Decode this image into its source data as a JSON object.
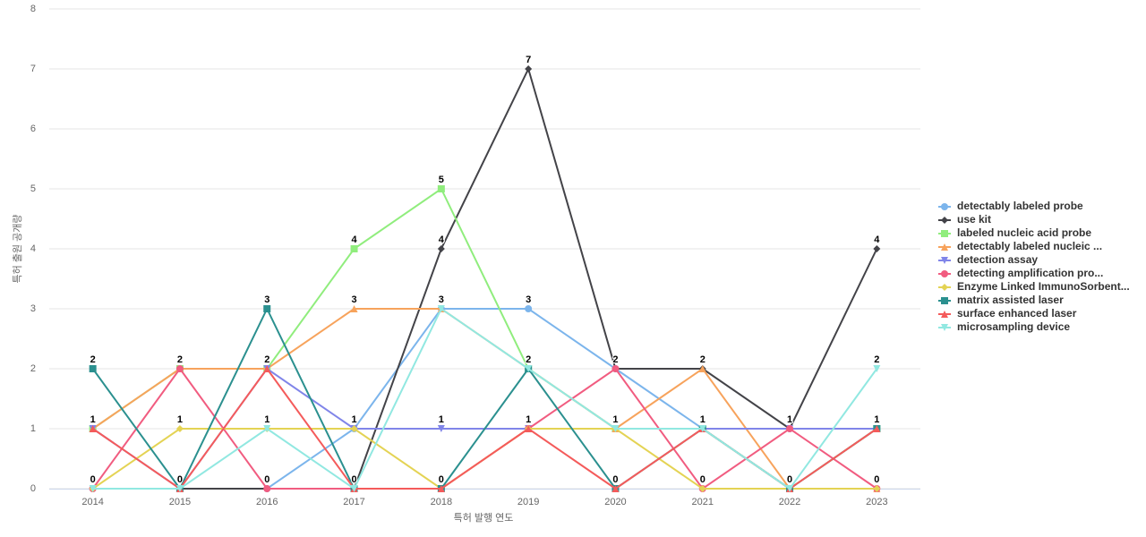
{
  "chart_data": {
    "type": "line",
    "x_label": "특허 발행 연도",
    "y_label": "특허 출원 공개량",
    "categories": [
      "2014",
      "2015",
      "2016",
      "2017",
      "2018",
      "2019",
      "2020",
      "2021",
      "2022",
      "2023"
    ],
    "ylim": [
      0,
      8
    ],
    "yticks": [
      0,
      1,
      2,
      3,
      4,
      5,
      6,
      7,
      8
    ],
    "grid": true,
    "legend": "right",
    "series": [
      {
        "name": "detectably labeled probe",
        "color": "#7cb5ec",
        "symbol": "circle",
        "values": [
          0,
          0,
          0,
          1,
          3,
          3,
          2,
          1,
          1,
          1
        ]
      },
      {
        "name": "use kit",
        "color": "#434348",
        "symbol": "diamond",
        "values": [
          0,
          0,
          0,
          0,
          4,
          7,
          2,
          2,
          1,
          4
        ]
      },
      {
        "name": "labeled nucleic acid probe",
        "color": "#90ed7d",
        "symbol": "square",
        "values": [
          1,
          2,
          2,
          4,
          5,
          2,
          1,
          1,
          0,
          1
        ]
      },
      {
        "name": "detectably labeled nucleic ...",
        "color": "#f7a35c",
        "symbol": "triangle",
        "values": [
          1,
          2,
          2,
          3,
          3,
          2,
          1,
          2,
          0,
          0
        ]
      },
      {
        "name": "detection assay",
        "color": "#8085e9",
        "symbol": "triangle-down",
        "values": [
          1,
          0,
          2,
          1,
          1,
          1,
          1,
          1,
          1,
          1
        ]
      },
      {
        "name": "detecting amplification pro...",
        "color": "#f15c80",
        "symbol": "circle",
        "values": [
          0,
          2,
          0,
          0,
          0,
          1,
          2,
          0,
          1,
          0
        ]
      },
      {
        "name": "Enzyme Linked ImmunoSorbent...",
        "color": "#e4d354",
        "symbol": "diamond",
        "values": [
          0,
          1,
          1,
          1,
          0,
          1,
          1,
          0,
          0,
          0
        ]
      },
      {
        "name": "matrix assisted laser",
        "color": "#2b908f",
        "symbol": "square",
        "values": [
          2,
          0,
          3,
          0,
          0,
          2,
          0,
          1,
          0,
          1
        ]
      },
      {
        "name": "surface enhanced laser",
        "color": "#f45b5b",
        "symbol": "triangle",
        "values": [
          1,
          0,
          2,
          0,
          0,
          1,
          0,
          1,
          0,
          1
        ]
      },
      {
        "name": "microsampling device",
        "color": "#91e8e1",
        "symbol": "triangle-down",
        "values": [
          0,
          0,
          1,
          0,
          3,
          2,
          1,
          1,
          0,
          2
        ]
      }
    ]
  }
}
